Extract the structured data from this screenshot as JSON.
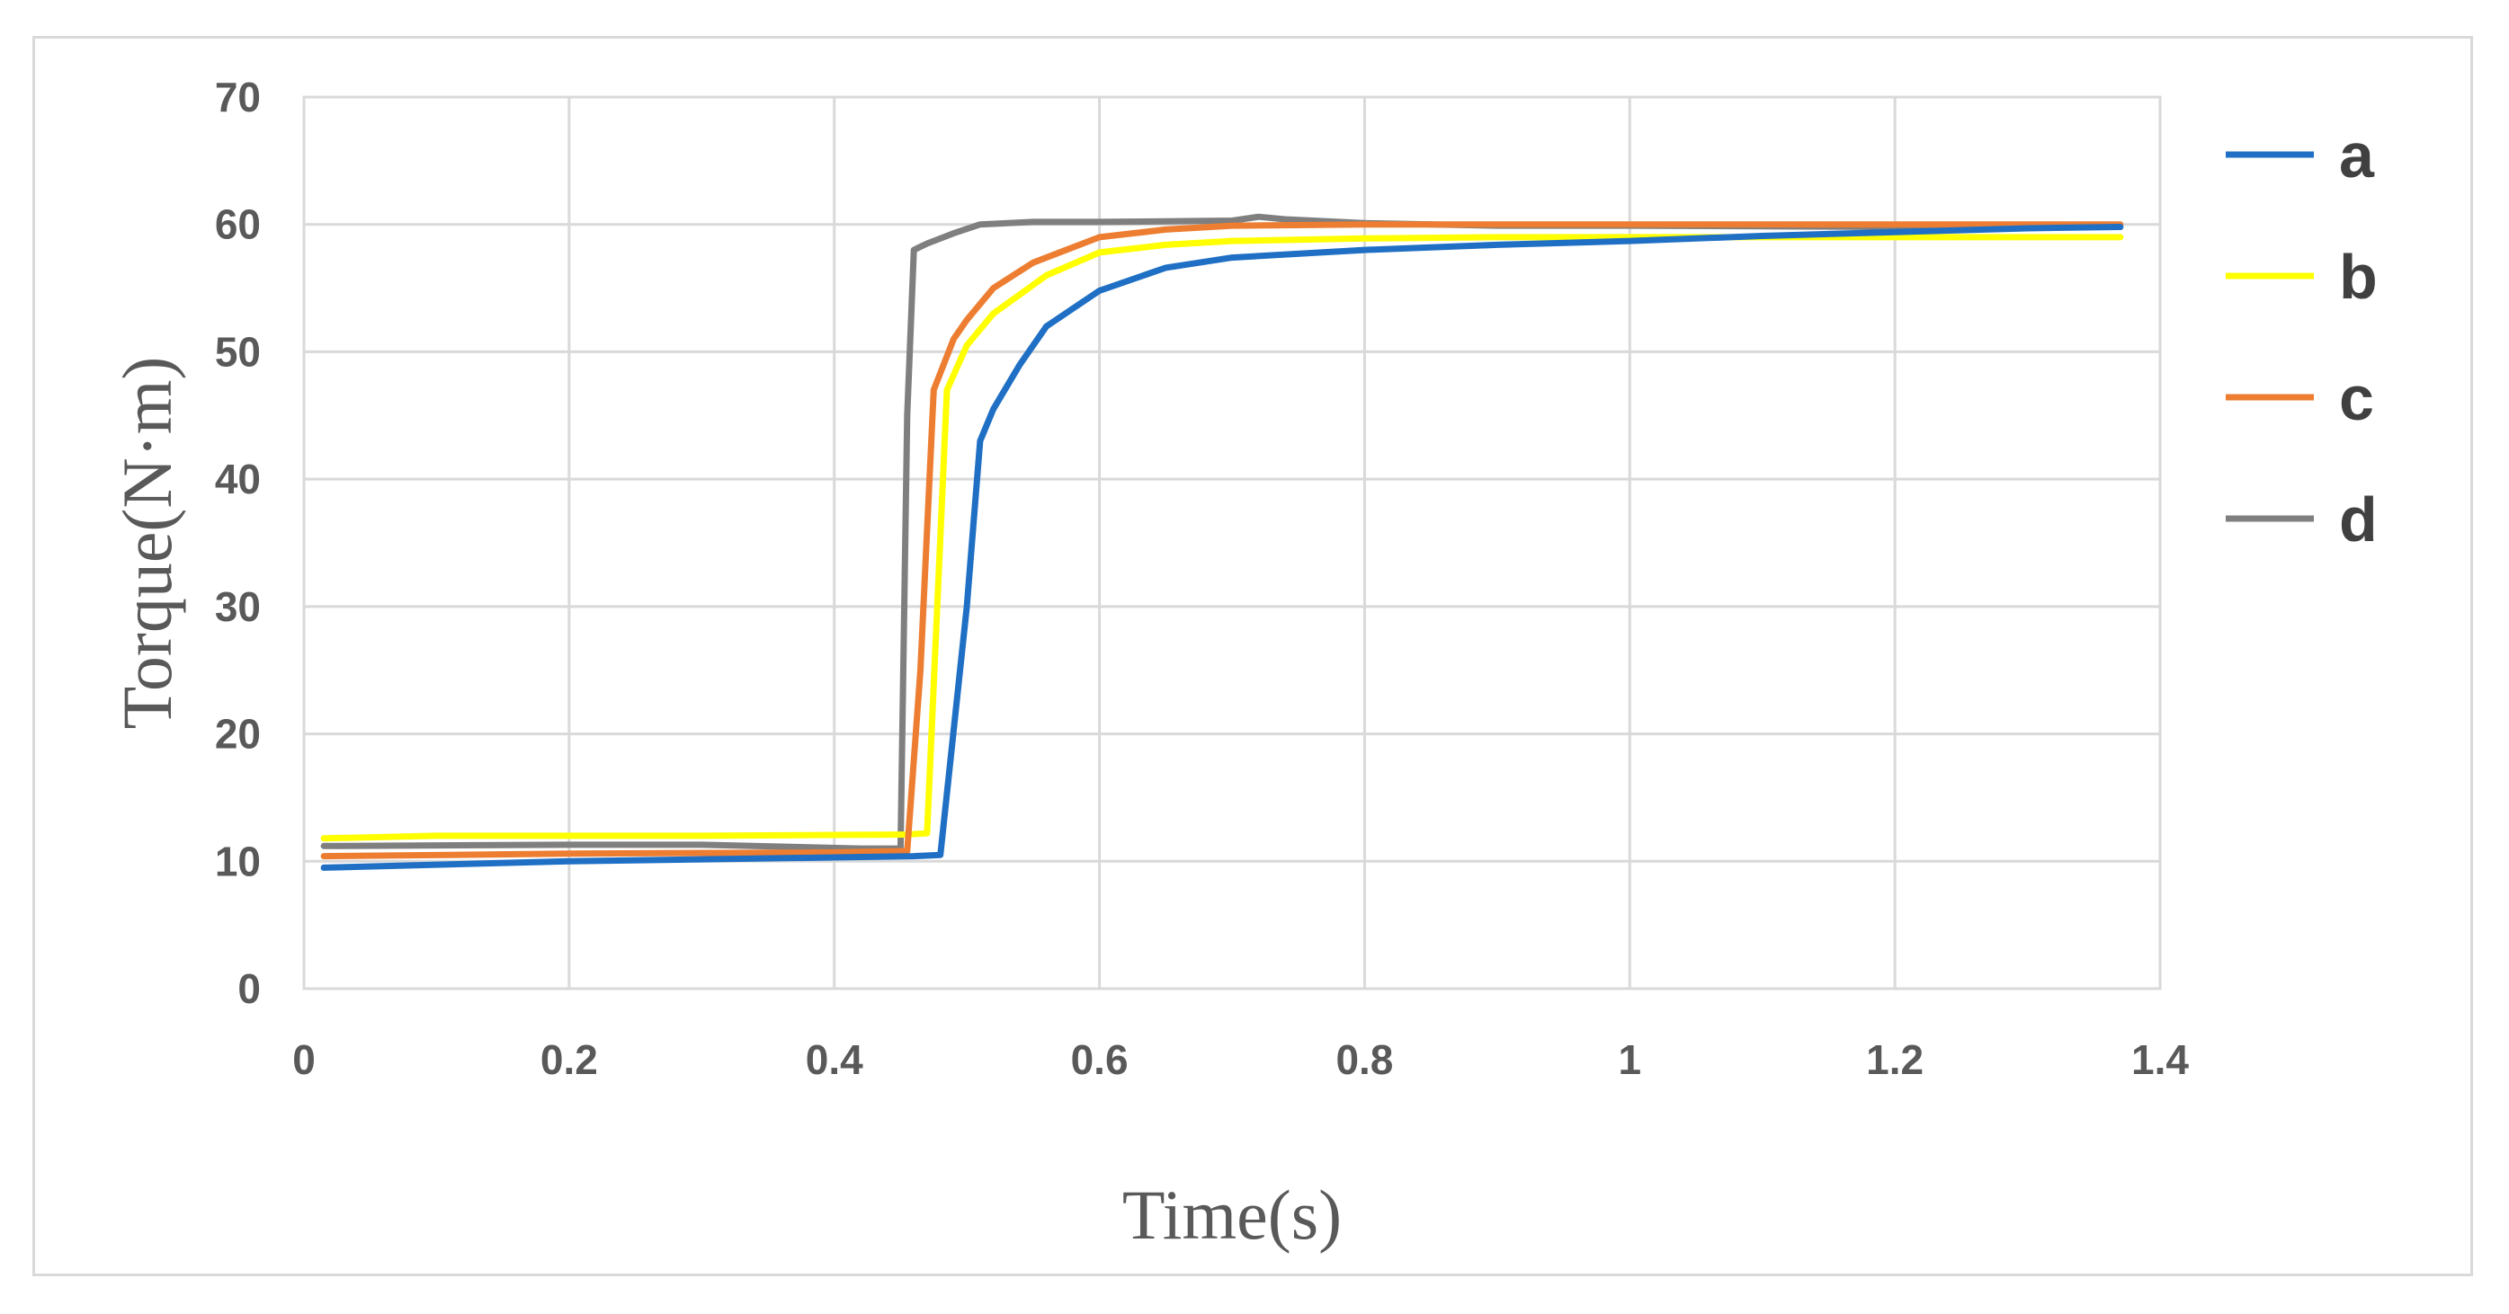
{
  "chart_data": {
    "type": "line",
    "title": "",
    "xlabel": "Time(s)",
    "ylabel": "Torque(N·m)",
    "xlim": [
      0,
      1.4
    ],
    "ylim": [
      0,
      70
    ],
    "xticks": [
      "0",
      "0.2",
      "0.4",
      "0.6",
      "0.8",
      "1",
      "1.2",
      "1.4"
    ],
    "yticks": [
      "0",
      "10",
      "20",
      "30",
      "40",
      "50",
      "60",
      "70"
    ],
    "grid": true,
    "legend_position": "right",
    "series": [
      {
        "name": "a",
        "color": "#1f6fc4",
        "x": [
          0.015,
          0.2,
          0.4,
          0.46,
          0.48,
          0.5,
          0.51,
          0.52,
          0.54,
          0.56,
          0.6,
          0.65,
          0.7,
          0.8,
          0.9,
          1.0,
          1.1,
          1.2,
          1.3,
          1.37
        ],
        "y": [
          9.5,
          10.0,
          10.3,
          10.4,
          10.5,
          30.0,
          43.0,
          45.5,
          49.0,
          52.0,
          54.8,
          56.6,
          57.4,
          58.0,
          58.4,
          58.7,
          59.1,
          59.4,
          59.7,
          59.8
        ]
      },
      {
        "name": "b",
        "color": "#ffff00",
        "x": [
          0.015,
          0.1,
          0.3,
          0.455,
          0.47,
          0.485,
          0.5,
          0.52,
          0.56,
          0.6,
          0.65,
          0.7,
          0.8,
          0.9,
          1.0,
          1.1,
          1.2,
          1.3,
          1.37
        ],
        "y": [
          11.8,
          12.0,
          12.0,
          12.1,
          12.2,
          47.0,
          50.5,
          53.0,
          56.0,
          57.8,
          58.4,
          58.7,
          58.9,
          59.0,
          59.0,
          59.0,
          59.0,
          59.0,
          59.0
        ]
      },
      {
        "name": "c",
        "color": "#ed7d31",
        "x": [
          0.015,
          0.2,
          0.4,
          0.455,
          0.465,
          0.475,
          0.49,
          0.5,
          0.52,
          0.55,
          0.58,
          0.6,
          0.65,
          0.7,
          0.8,
          0.9,
          1.0,
          1.2,
          1.37
        ],
        "y": [
          10.4,
          10.6,
          10.7,
          10.8,
          25.0,
          47.0,
          51.0,
          52.5,
          55.0,
          57.0,
          58.2,
          59.0,
          59.6,
          59.9,
          60.0,
          60.0,
          60.0,
          60.0,
          60.0
        ]
      },
      {
        "name": "d",
        "color": "#7f7f7f",
        "x": [
          0.015,
          0.2,
          0.3,
          0.42,
          0.45,
          0.455,
          0.46,
          0.47,
          0.49,
          0.51,
          0.55,
          0.6,
          0.7,
          0.72,
          0.74,
          0.8,
          0.9,
          1.0,
          1.2,
          1.37
        ],
        "y": [
          11.2,
          11.3,
          11.3,
          11.0,
          11.0,
          45.0,
          58.0,
          58.5,
          59.3,
          60.0,
          60.2,
          60.2,
          60.3,
          60.6,
          60.4,
          60.1,
          59.9,
          59.9,
          59.8,
          59.8
        ]
      }
    ]
  }
}
